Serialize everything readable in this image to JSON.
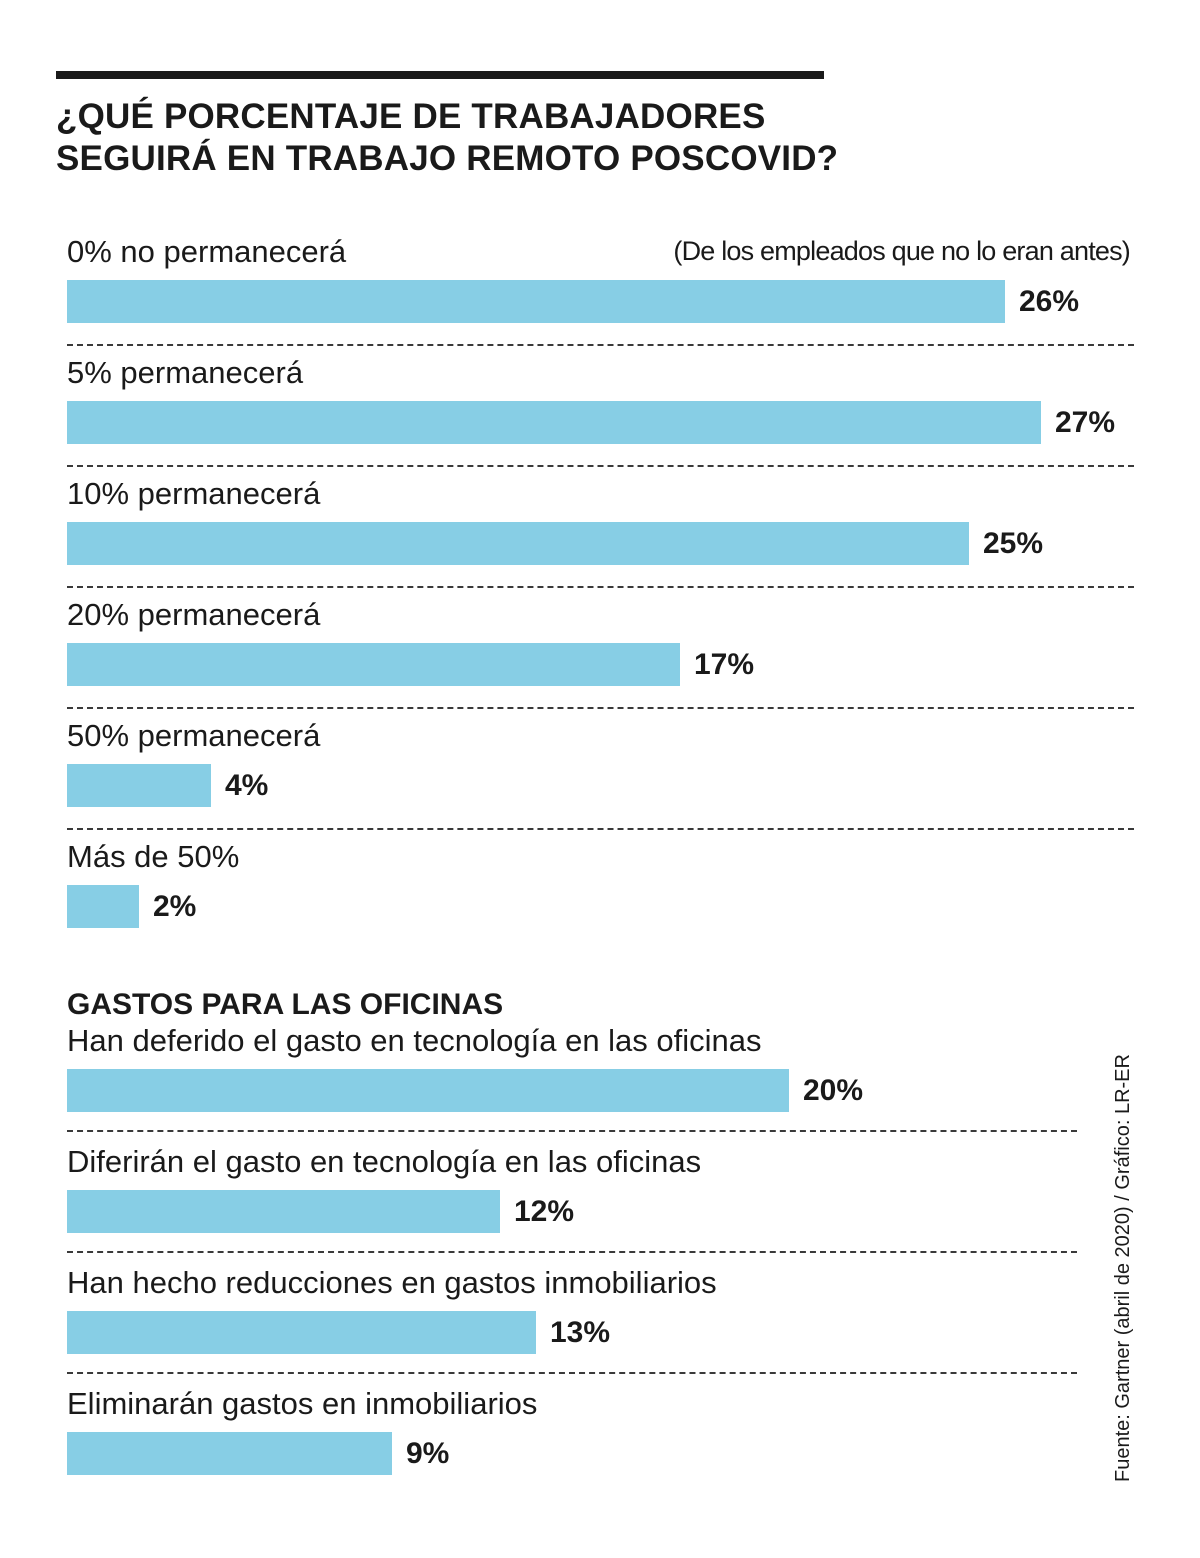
{
  "header": {
    "title_line1": "¿QUÉ PORCENTAJE DE TRABAJADORES",
    "title_line2": "SEGUIRÁ EN TRABAJO REMOTO POSCOVID?"
  },
  "chart_data": [
    {
      "type": "bar",
      "orientation": "horizontal",
      "title": "¿QUÉ PORCENTAJE DE TRABAJADORES SEGUIRÁ EN TRABAJO REMOTO POSCOVID?",
      "note": "(De los empleados que no lo eran antes)",
      "categories": [
        "0% no permanecerá",
        "5% permanecerá",
        "10% permanecerá",
        "20% permanecerá",
        "50% permanecerá",
        "Más de 50%"
      ],
      "values": [
        26,
        27,
        25,
        17,
        4,
        2
      ],
      "value_labels": [
        "26%",
        "27%",
        "25%",
        "17%",
        "4%",
        "2%"
      ],
      "unit": "%",
      "grid": false,
      "legend": "none",
      "bar_color": "#87CEE5"
    },
    {
      "type": "bar",
      "orientation": "horizontal",
      "title": "GASTOS PARA LAS OFICINAS",
      "categories": [
        "Han deferido el gasto en tecnología en las oficinas",
        "Diferirán el gasto en tecnología en las oficinas",
        "Han hecho reducciones en gastos inmobiliarios",
        "Eliminarán gastos en inmobiliarios"
      ],
      "values": [
        20,
        12,
        13,
        9
      ],
      "value_labels": [
        "20%",
        "12%",
        "13%",
        "9%"
      ],
      "unit": "%",
      "grid": false,
      "legend": "none",
      "bar_color": "#87CEE5"
    }
  ],
  "source": "Fuente: Gartner (abril de 2020) / Gráfico: LR-ER"
}
